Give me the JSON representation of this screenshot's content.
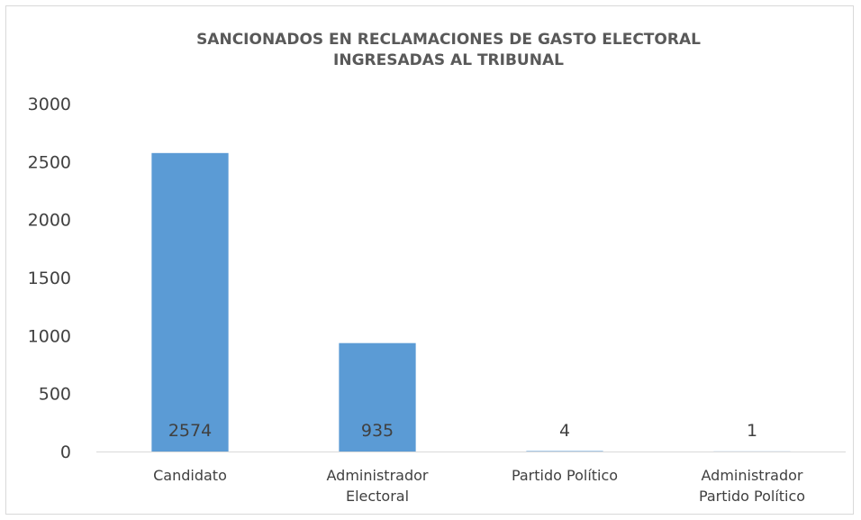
{
  "chart_data": {
    "type": "bar",
    "title_lines": [
      "SANCIONADOS EN RECLAMACIONES DE GASTO ELECTORAL",
      "INGRESADAS AL TRIBUNAL"
    ],
    "categories": [
      [
        "Candidato"
      ],
      [
        "Administrador",
        "Electoral"
      ],
      [
        "Partido Político"
      ],
      [
        "Administrador",
        "Partido Político"
      ]
    ],
    "values": [
      2574,
      935,
      4,
      1
    ],
    "data_labels": [
      "2574",
      "935",
      "4",
      "1"
    ],
    "ylim": [
      0,
      3000
    ],
    "yticks": [
      "0",
      "500",
      "1000",
      "1500",
      "2000",
      "2500",
      "3000"
    ],
    "xlabel": "",
    "ylabel": "",
    "grid": false,
    "legend": "none",
    "bar_color": "#5b9bd5"
  }
}
